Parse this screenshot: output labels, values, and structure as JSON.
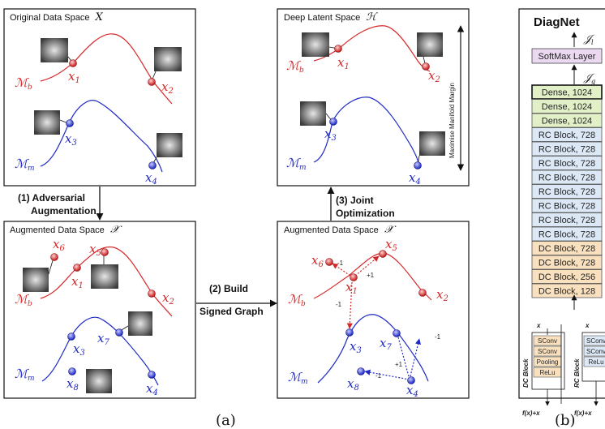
{
  "panels": {
    "original": {
      "title": "Original Data Space",
      "symbol": "X"
    },
    "latent": {
      "title": "Deep Latent Space",
      "symbol": "ℋ"
    },
    "augmented_left": {
      "title": "Augmented Data Space",
      "symbol": "𝒳"
    },
    "augmented_right": {
      "title": "Augmented Data Space",
      "symbol": "𝒳"
    }
  },
  "manifolds": {
    "benign": "ℳ",
    "benign_sub": "b",
    "malignant": "ℳ",
    "malignant_sub": "m"
  },
  "points": {
    "x1": "x",
    "s1": "1",
    "s2": "2",
    "s3": "3",
    "s4": "4",
    "s5": "5",
    "s6": "6",
    "s7": "7",
    "s8": "8"
  },
  "steps": {
    "step1_line1": "(1) Adversarial",
    "step1_line2": "Augmentation",
    "step2_line1": "(2) Build",
    "step2_line2": "Signed Graph",
    "step3_line1": "(3) Joint",
    "step3_line2": "Optimization"
  },
  "margin_label": "Maximise Manifold Margin",
  "edge_weights": {
    "neg": "-1",
    "pos": "+1"
  },
  "diagnet": {
    "title": "DiagNet",
    "loss_l": "𝒥",
    "loss_l_sub": "l",
    "loss_g": "𝒥",
    "loss_g_sub": "g",
    "softmax": "SoftMax Layer",
    "layers": [
      {
        "label": "Dense, 1024",
        "kind": "dense"
      },
      {
        "label": "Dense, 1024",
        "kind": "dense"
      },
      {
        "label": "Dense, 1024",
        "kind": "dense"
      },
      {
        "label": "RC Block,  728",
        "kind": "rc"
      },
      {
        "label": "RC Block,  728",
        "kind": "rc"
      },
      {
        "label": "RC Block,  728",
        "kind": "rc"
      },
      {
        "label": "RC Block,  728",
        "kind": "rc"
      },
      {
        "label": "RC Block,  728",
        "kind": "rc"
      },
      {
        "label": "RC Block,  728",
        "kind": "rc"
      },
      {
        "label": "RC Block,  728",
        "kind": "rc"
      },
      {
        "label": "RC Block,  728",
        "kind": "rc"
      },
      {
        "label": "DC Block,  728",
        "kind": "dc"
      },
      {
        "label": "DC Block,  728",
        "kind": "dc"
      },
      {
        "label": "DC Block,  256",
        "kind": "dc"
      },
      {
        "label": "DC Block,  128",
        "kind": "dc"
      }
    ],
    "dc_block": {
      "name": "DC Block",
      "input": "x",
      "output": "f(x)+x",
      "ops": [
        "SConv",
        "SConv",
        "Pooling",
        "ReLu"
      ]
    },
    "rc_block": {
      "name": "RC Block",
      "input": "x",
      "output": "f(x)+x",
      "ops": [
        "SConv",
        "SConv",
        "ReLu"
      ]
    }
  },
  "captions": {
    "a": "(a)",
    "b": "(b)"
  },
  "colors": {
    "red": "#d62728",
    "blue": "#1f2ac4",
    "dense": "#e2f0c8",
    "rc": "#dce8f6",
    "dc": "#f9e1c0",
    "softmax": "#ead9f0"
  }
}
